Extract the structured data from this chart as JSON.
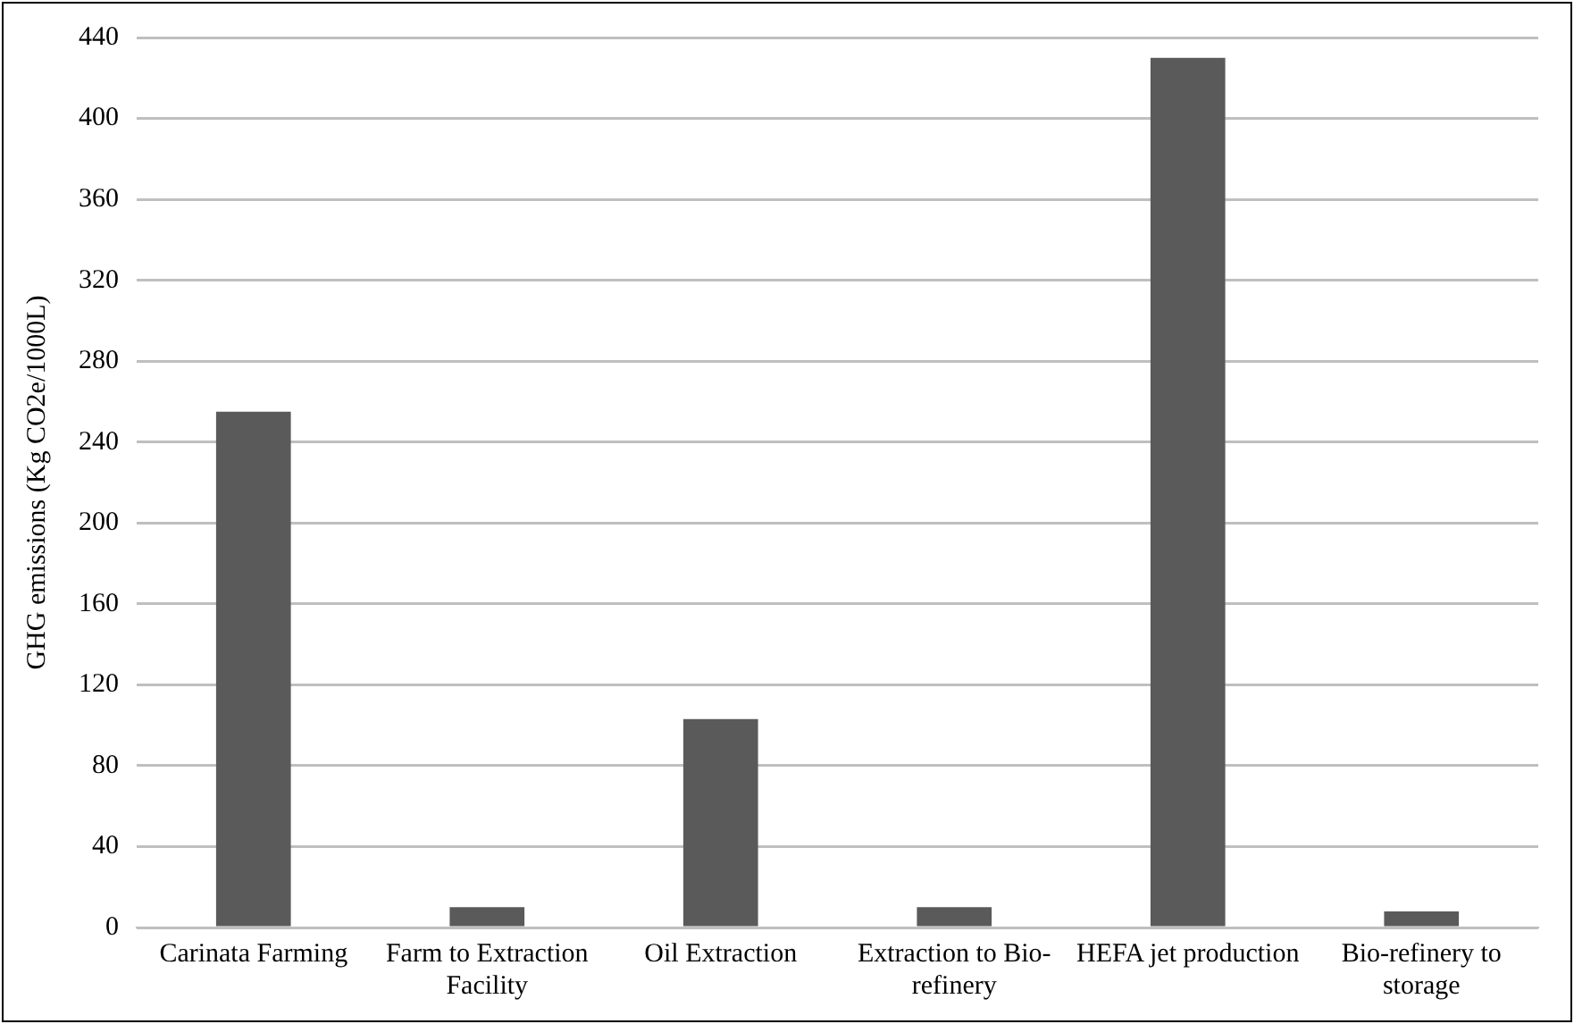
{
  "chart_data": {
    "type": "bar",
    "ylabel": "GHG emissions (Kg CO2e/1000L)",
    "categories": [
      "Carinata Farming",
      "Farm to Extraction Facility",
      "Oil Extraction",
      "Extraction to Bio-refinery",
      "HEFA jet production",
      "Bio-refinery to storage"
    ],
    "values": [
      255,
      10,
      103,
      10,
      430,
      8
    ],
    "color": "#5a5a5a",
    "ylim": [
      0,
      440
    ],
    "yticks": [
      0,
      40,
      80,
      120,
      160,
      200,
      240,
      280,
      320,
      360,
      400,
      440
    ],
    "grid": "y"
  }
}
